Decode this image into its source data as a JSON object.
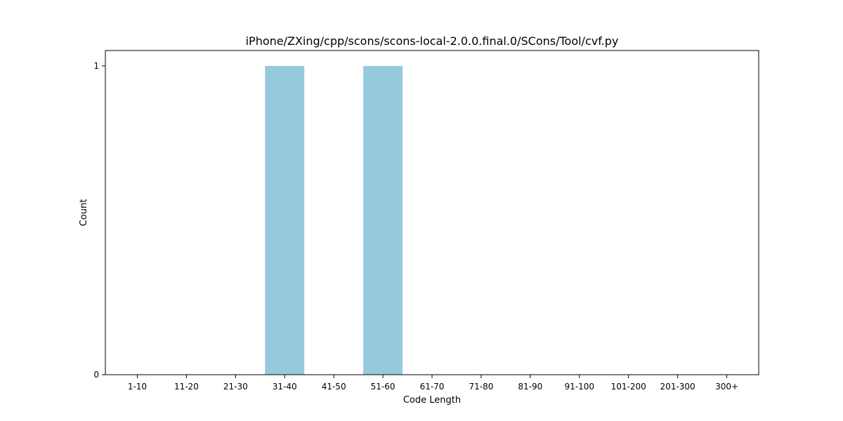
{
  "chart_data": {
    "type": "bar",
    "title": "iPhone/ZXing/cpp/scons/scons-local-2.0.0.final.0/SCons/Tool/cvf.py",
    "xlabel": "Code Length",
    "ylabel": "Count",
    "categories": [
      "1-10",
      "11-20",
      "21-30",
      "31-40",
      "41-50",
      "51-60",
      "61-70",
      "71-80",
      "81-90",
      "91-100",
      "101-200",
      "201-300",
      "300+"
    ],
    "values": [
      0,
      0,
      0,
      1,
      0,
      1,
      0,
      0,
      0,
      0,
      0,
      0,
      0
    ],
    "ylim": [
      0,
      1.05
    ],
    "yticks": [
      "0",
      "1"
    ],
    "bar_color": "#96c9de",
    "grid": false,
    "legend": "none"
  }
}
